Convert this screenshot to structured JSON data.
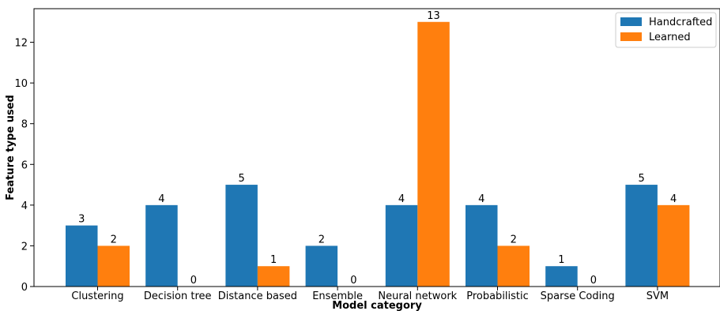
{
  "chart_data": {
    "type": "bar",
    "categories": [
      "Clustering",
      "Decision tree",
      "Distance based",
      "Ensemble",
      "Neural network",
      "Probabilistic",
      "Sparse Coding",
      "SVM"
    ],
    "series": [
      {
        "name": "Handcrafted",
        "color": "#1f77b4",
        "values": [
          3,
          4,
          5,
          2,
          4,
          4,
          1,
          5
        ]
      },
      {
        "name": "Learned",
        "color": "#ff7f0e",
        "values": [
          2,
          0,
          1,
          0,
          13,
          2,
          0,
          4
        ]
      }
    ],
    "xlabel": "Model category",
    "ylabel": "Feature type used",
    "ylim": [
      0,
      13.65
    ],
    "yticks": [
      0,
      2,
      4,
      6,
      8,
      10,
      12
    ],
    "legend_position": "top-right",
    "grid": false
  }
}
